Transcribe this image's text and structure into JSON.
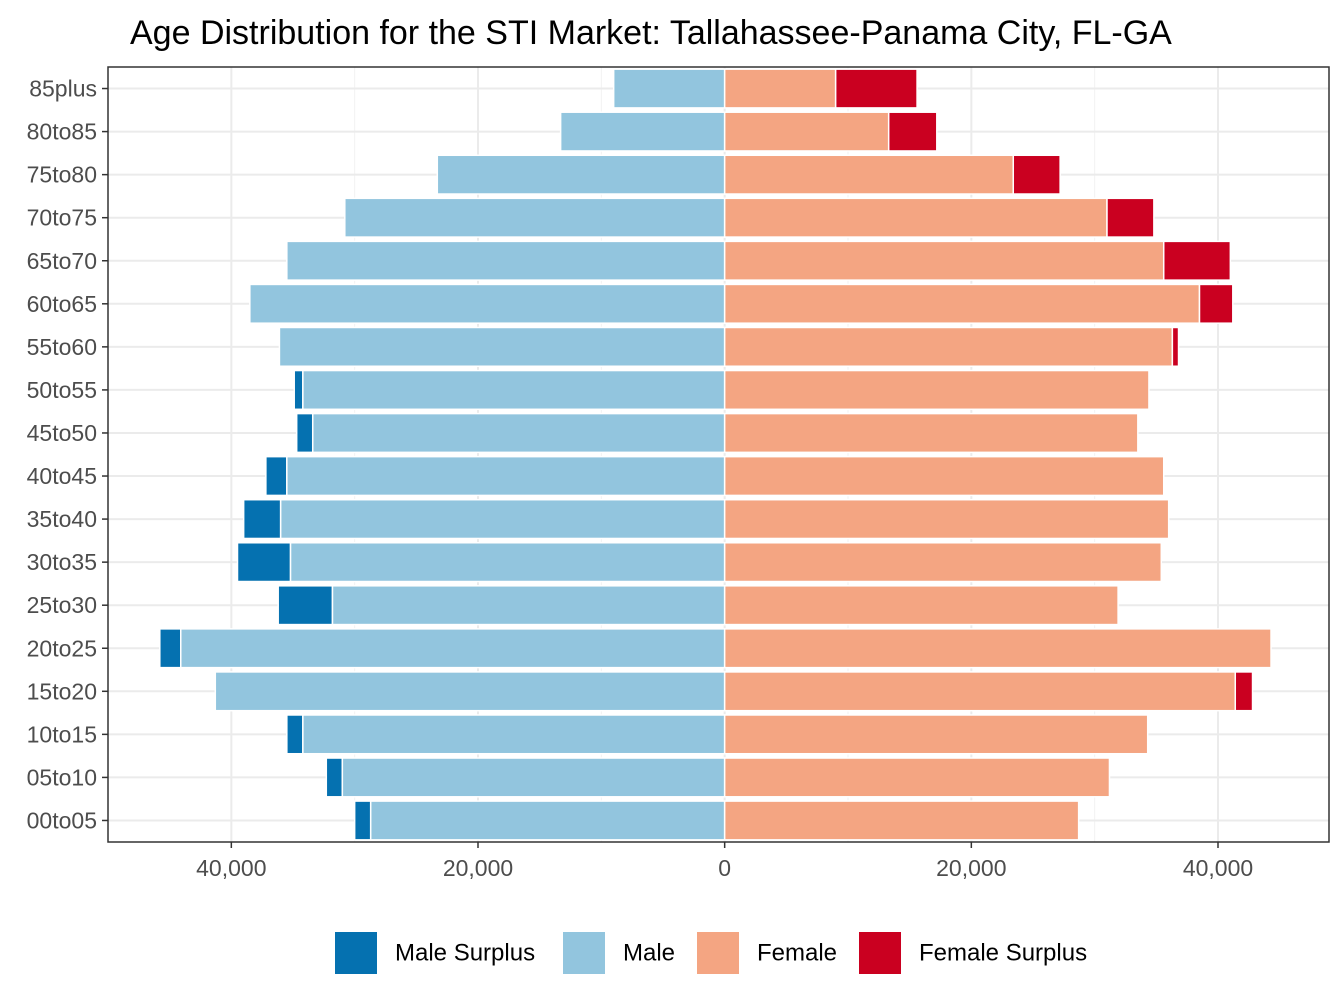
{
  "chart_data": {
    "type": "bar",
    "orientation": "horizontal",
    "layout": "population-pyramid",
    "title": "Age Distribution for the STI Market: Tallahassee-Panama City, FL-GA",
    "xlabel": "",
    "ylabel": "",
    "xlim": [
      -50000,
      49000
    ],
    "x_ticks": [
      -40000,
      -20000,
      0,
      20000,
      40000
    ],
    "x_tick_labels": [
      "40,000",
      "20,000",
      "0",
      "20,000",
      "40,000"
    ],
    "grid": true,
    "legend_position": "bottom",
    "categories": [
      "00to05",
      "05to10",
      "10to15",
      "15to20",
      "20to25",
      "25to30",
      "30to35",
      "35to40",
      "40to45",
      "45to50",
      "50to55",
      "55to60",
      "60to65",
      "65to70",
      "70to75",
      "75to80",
      "80to85",
      "85plus"
    ],
    "series": [
      {
        "name": "Male Surplus",
        "color": "#0571b0",
        "values": [
          1300,
          1300,
          1300,
          0,
          1700,
          4400,
          4300,
          3000,
          1700,
          1300,
          700,
          0,
          0,
          0,
          0,
          0,
          0,
          0
        ]
      },
      {
        "name": "Male",
        "color": "#92c5de",
        "values": [
          28700,
          31000,
          34200,
          41300,
          44100,
          31800,
          35200,
          36000,
          35500,
          33400,
          34200,
          36100,
          38500,
          35500,
          30800,
          23300,
          13300,
          9000
        ]
      },
      {
        "name": "Female",
        "color": "#f4a582",
        "values": [
          28700,
          31200,
          34300,
          41400,
          44300,
          31900,
          35400,
          36000,
          35600,
          33500,
          34400,
          36300,
          38500,
          35600,
          31000,
          23400,
          13300,
          9000
        ]
      },
      {
        "name": "Female Surplus",
        "color": "#ca0020",
        "values": [
          0,
          0,
          0,
          1400,
          0,
          0,
          0,
          0,
          0,
          0,
          0,
          500,
          2700,
          5400,
          3800,
          3800,
          3900,
          6600
        ]
      }
    ]
  }
}
